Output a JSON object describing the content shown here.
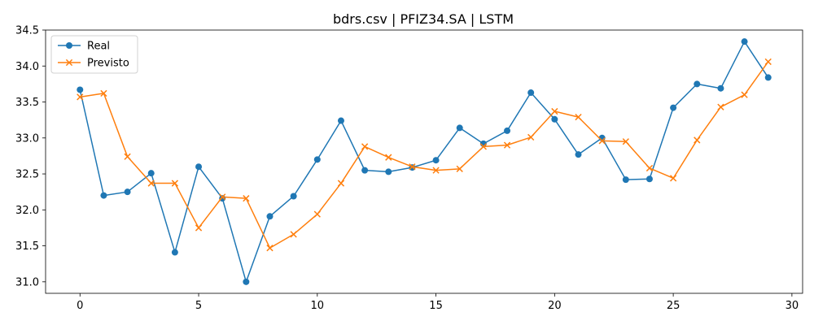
{
  "chart_data": {
    "type": "line",
    "title": "bdrs.csv | PFIZ34.SA | LSTM",
    "xlabel": "",
    "ylabel": "",
    "xlim": [
      -1.45,
      30.45
    ],
    "ylim": [
      30.84,
      34.5
    ],
    "xticks": [
      0,
      5,
      10,
      15,
      20,
      25,
      30
    ],
    "yticks": [
      31.0,
      31.5,
      32.0,
      32.5,
      33.0,
      33.5,
      34.0,
      34.5
    ],
    "legend_position": "top-left",
    "grid": false,
    "x": [
      0,
      1,
      2,
      3,
      4,
      5,
      6,
      7,
      8,
      9,
      10,
      11,
      12,
      13,
      14,
      15,
      16,
      17,
      18,
      19,
      20,
      21,
      22,
      23,
      24,
      25,
      26,
      27,
      28,
      29
    ],
    "series": [
      {
        "name": "Real",
        "color": "#1f77b4",
        "marker": "circle",
        "values": [
          33.67,
          32.2,
          32.25,
          32.51,
          31.41,
          32.6,
          32.16,
          31.0,
          31.91,
          32.19,
          32.7,
          33.24,
          32.55,
          32.53,
          32.59,
          32.69,
          33.14,
          32.92,
          33.1,
          33.63,
          33.26,
          32.77,
          33.0,
          32.42,
          32.43,
          33.42,
          33.75,
          33.69,
          34.34,
          33.84
        ]
      },
      {
        "name": "Previsto",
        "color": "#ff7f0e",
        "marker": "x",
        "values": [
          33.57,
          33.62,
          32.74,
          32.37,
          32.37,
          31.75,
          32.18,
          32.16,
          31.47,
          31.66,
          31.94,
          32.37,
          32.88,
          32.73,
          32.6,
          32.55,
          32.57,
          32.88,
          32.9,
          33.01,
          33.37,
          33.29,
          32.96,
          32.95,
          32.58,
          32.44,
          32.97,
          33.43,
          33.6,
          34.06
        ]
      }
    ]
  }
}
